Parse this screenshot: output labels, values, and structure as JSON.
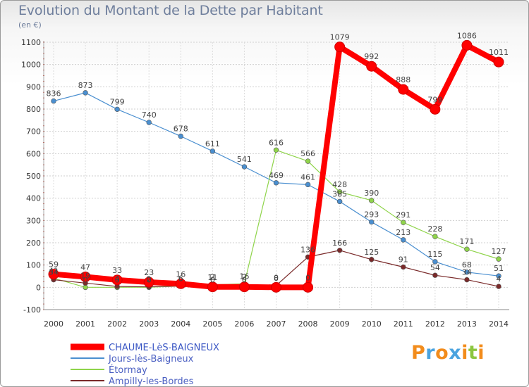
{
  "chart_data": {
    "type": "line",
    "title": "Evolution du Montant de la Dette par Habitant",
    "unit_label": "(en €)",
    "x": [
      "2000",
      "2001",
      "2002",
      "2003",
      "2004",
      "2005",
      "2006",
      "2007",
      "2008",
      "2009",
      "2010",
      "2011",
      "2012",
      "2013",
      "2014"
    ],
    "ylim": [
      -100,
      1100
    ],
    "yticks": [
      -100,
      0,
      100,
      200,
      300,
      400,
      500,
      600,
      700,
      800,
      900,
      1000,
      1100
    ],
    "grid": true,
    "legend_position": "bottom-left",
    "series": [
      {
        "name": "Jours-lès-Baigneux",
        "color": "#4a8fd0",
        "values": [
          836,
          873,
          799,
          740,
          678,
          611,
          541,
          469,
          461,
          385,
          293,
          213,
          115,
          68,
          51
        ],
        "labels": [
          "836",
          "873",
          "799",
          "740",
          "678",
          "611",
          "541",
          "469",
          "461",
          "385",
          "293",
          "213",
          "115",
          "68",
          "51"
        ]
      },
      {
        "name": "Étormay",
        "color": "#8fd44a",
        "values": [
          41,
          0,
          0,
          0,
          6,
          11,
          16,
          616,
          566,
          428,
          390,
          291,
          228,
          171,
          127
        ],
        "labels": [
          "41",
          "0",
          "0",
          "0",
          "6",
          "11",
          "16",
          "616",
          "566",
          "428",
          "390",
          "291",
          "228",
          "171",
          "127"
        ]
      },
      {
        "name": "Ampilly-les-Bordes",
        "color": "#7a2a2a",
        "values": [
          34,
          19,
          4,
          2,
          6,
          0,
          0,
          8,
          136,
          166,
          125,
          91,
          54,
          34,
          4
        ],
        "labels": [
          "34",
          "19",
          "4",
          "2",
          "6",
          "0",
          "0",
          "8",
          "136",
          "166",
          "125",
          "91",
          "54",
          "34",
          "4"
        ]
      },
      {
        "name": "CHAUME-LèS-BAIGNEUX",
        "color": "#ff0000",
        "values": [
          59,
          47,
          33,
          23,
          16,
          2,
          2,
          0,
          0,
          1079,
          992,
          888,
          799,
          1086,
          1011
        ],
        "labels": [
          "59",
          "47",
          "33",
          "23",
          "16",
          "2",
          "2",
          "0",
          "0",
          "1079",
          "992",
          "888",
          "799",
          "1086",
          "1011"
        ]
      }
    ],
    "legend": [
      {
        "name": "CHAUME-LèS-BAIGNEUX",
        "color": "#ff0000"
      },
      {
        "name": "Jours-lès-Baigneux",
        "color": "#4a8fd0"
      },
      {
        "name": "Étormay",
        "color": "#8fd44a"
      },
      {
        "name": "Ampilly-les-Bordes",
        "color": "#7a2a2a"
      }
    ]
  },
  "logo": {
    "letters": [
      "P",
      "r",
      "o",
      "x",
      "i",
      "t",
      "i"
    ],
    "colors": [
      "#f28c1c",
      "#4aa3df",
      "#f28c1c",
      "#4aa3df",
      "#f28c1c",
      "#8cc63f",
      "#f28c1c"
    ]
  }
}
